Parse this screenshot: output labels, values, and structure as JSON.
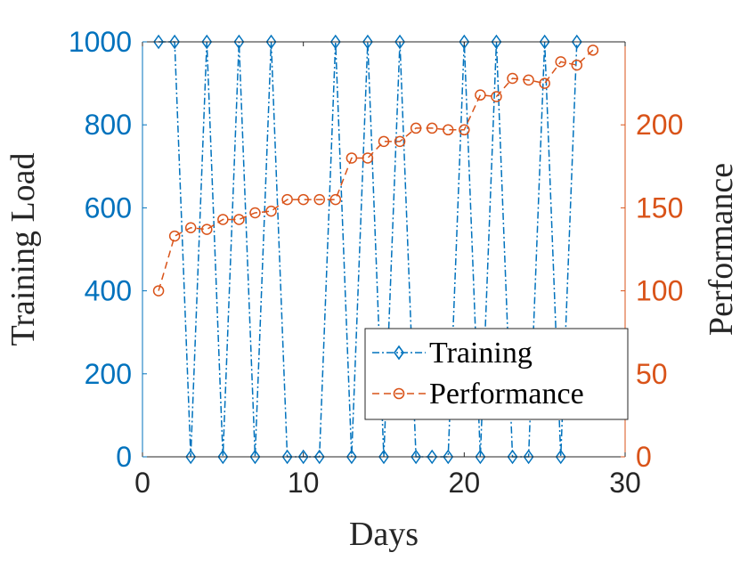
{
  "chart_data": {
    "type": "line",
    "title": "",
    "xlabel": "Days",
    "ylabel_left": "Training Load",
    "ylabel_right": "Performance",
    "xlim": [
      0,
      30
    ],
    "ylim_left": [
      0,
      1000
    ],
    "ylim_right": [
      0,
      250
    ],
    "xticks": [
      "0",
      "10",
      "20",
      "30"
    ],
    "yticks_left": [
      "0",
      "200",
      "400",
      "600",
      "800",
      "1000"
    ],
    "yticks_right": [
      "0",
      "50",
      "100",
      "150",
      "200"
    ],
    "legend_position": "bottom-right",
    "colors": {
      "training": "#0072BD",
      "performance": "#D95319",
      "axis": "#262626"
    },
    "series": [
      {
        "name": "Training",
        "axis": "left",
        "marker": "diamond",
        "linestyle": "dash-dot",
        "x": [
          1,
          2,
          3,
          4,
          5,
          6,
          7,
          8,
          9,
          10,
          11,
          12,
          13,
          14,
          15,
          16,
          17,
          18,
          19,
          20,
          21,
          22,
          23,
          24,
          25,
          26,
          27
        ],
        "values": [
          1000,
          1000,
          0,
          1000,
          0,
          1000,
          0,
          1000,
          0,
          0,
          0,
          1000,
          0,
          1000,
          0,
          1000,
          0,
          0,
          0,
          1000,
          0,
          1000,
          0,
          0,
          1000,
          0,
          1000
        ]
      },
      {
        "name": "Performance",
        "axis": "right",
        "marker": "circle",
        "linestyle": "dashed",
        "x": [
          1,
          2,
          3,
          4,
          5,
          6,
          7,
          8,
          9,
          10,
          11,
          12,
          13,
          14,
          15,
          16,
          17,
          18,
          19,
          20,
          21,
          22,
          23,
          24,
          25,
          26,
          27,
          28
        ],
        "values": [
          100,
          133,
          138,
          137,
          143,
          143,
          147,
          148,
          155,
          155,
          155,
          155,
          180,
          180,
          190,
          190,
          198,
          198,
          197,
          197,
          218,
          217,
          228,
          227,
          225,
          238,
          236,
          245
        ]
      }
    ]
  }
}
